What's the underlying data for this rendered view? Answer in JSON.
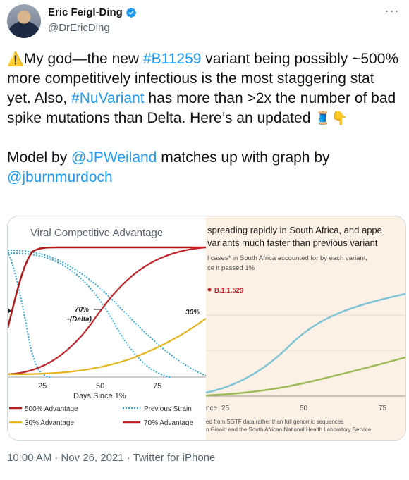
{
  "author": {
    "display_name": "Eric Feigl-Ding",
    "handle": "@DrEricDing",
    "avatar_icon": "avatar-photo",
    "verified_icon": "verified-badge-icon"
  },
  "more_icon": "ellipsis-icon",
  "tweet": {
    "line1": {
      "warning_emoji": "⚠️",
      "t1": "My god—the new ",
      "hashtag1": "#B11259",
      "t2": " variant being possibly ~500% more competitively infectious is the most staggering stat yet. Also, ",
      "hashtag2": "#NuVariant",
      "t3": " has more than >2x the number of bad spike mutations than Delta. Here’s an updated ",
      "spool_emoji": "🧵",
      "point_emoji": "👇"
    },
    "line2": {
      "t1": "Model by ",
      "mention1": "@JPWeiland",
      "t2": " matches up with graph by ",
      "mention2": "@jburnmurdoch"
    }
  },
  "left_chart": {
    "title": "Viral Competitive Advantage",
    "xlabel": "Days Since 1%",
    "ticks": [
      "25",
      "50",
      "75"
    ],
    "annotation_delta_1": "70%",
    "annotation_delta_2": "~(Delta)",
    "annotation_30": "30%",
    "legend": {
      "s500": "500% Advantage",
      "prev": "Previous Strain",
      "s30": "30% Advantage",
      "s70": "70% Advantage"
    },
    "colors": {
      "s500": "#b01c1c",
      "s70": "#c0262a",
      "s30": "#e6b51d",
      "prev": "#35a8d6"
    }
  },
  "right_chart": {
    "title1": "spreading rapidly in South Africa, and appe",
    "title2": "variants much faster than previous variant",
    "subtitle1": "l cases* in South Africa accounted for by each variant,",
    "subtitle2": "ce it passed 1%",
    "series_label": "B.1.1.529",
    "ticks": [
      "25",
      "50",
      "75"
    ],
    "tick_prefix": "nce",
    "source1": "ed from SGTF data rather than full genomic sequences",
    "source2": "n Gisaid and the South African National Health Laboratory Service",
    "colors": {
      "b11529": "#7ec3d6",
      "other": "#9dbb55",
      "label": "#c0262a"
    }
  },
  "meta": {
    "time": "10:00 AM",
    "date": "Nov 26, 2021",
    "source": "Twitter for iPhone"
  }
}
